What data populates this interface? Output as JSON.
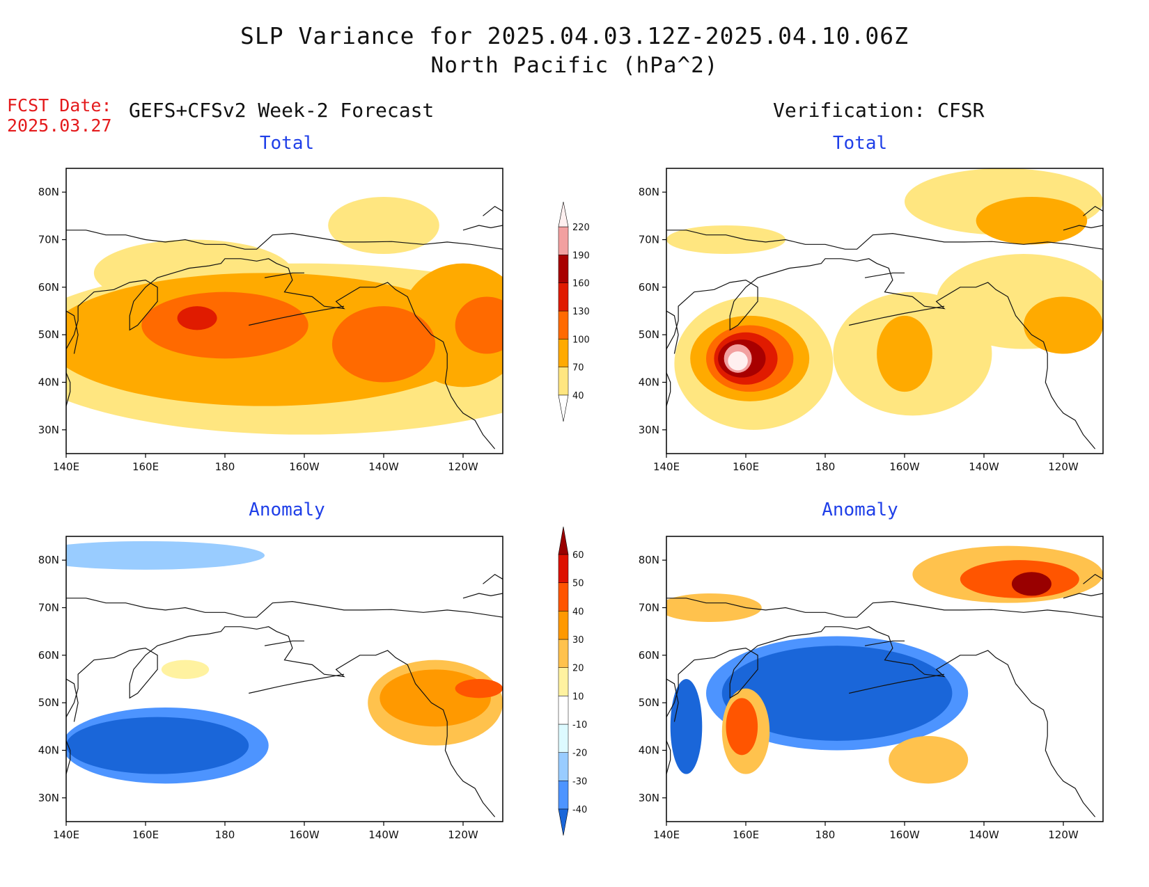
{
  "title": {
    "line1": "SLP Variance for 2025.04.03.12Z-2025.04.10.06Z",
    "line2": "North Pacific (hPa^2)"
  },
  "forecast": {
    "date_label": "FCST Date:",
    "date_value": "2025.03.27",
    "heading": "GEFS+CFSv2 Week-2 Forecast"
  },
  "verification": {
    "heading": "Verification: CFSR"
  },
  "panels": {
    "fc_total": {
      "title": "Total"
    },
    "vf_total": {
      "title": "Total"
    },
    "fc_anom": {
      "title": "Anomaly"
    },
    "vf_anom": {
      "title": "Anomaly"
    }
  },
  "axes": {
    "lat_labels": [
      "80N",
      "70N",
      "60N",
      "50N",
      "40N",
      "30N"
    ],
    "lon_labels": [
      "140E",
      "160E",
      "180",
      "160W",
      "140W",
      "120W"
    ]
  },
  "colorbars": {
    "total": {
      "levels": [
        "40",
        "70",
        "100",
        "130",
        "160",
        "190",
        "220"
      ],
      "colors": [
        "#ffe680",
        "#ffaa00",
        "#ff6a00",
        "#e01b00",
        "#a80000",
        "#f2a0a0",
        "#fff0f0"
      ]
    },
    "anomaly": {
      "levels": [
        "-40",
        "-30",
        "-20",
        "-10",
        "10",
        "20",
        "30",
        "40",
        "50",
        "60"
      ],
      "colors": [
        "#1a66d9",
        "#4d94ff",
        "#99ccff",
        "#ddfaff",
        "#ffffff",
        "#fff2a0",
        "#ffc24d",
        "#ff9900",
        "#ff5500",
        "#dd1100",
        "#990000"
      ]
    }
  },
  "chart_data": [
    {
      "type": "heatmap",
      "title": "Total",
      "subtitle": "GEFS+CFSv2 Week-2 Forecast",
      "units": "hPa^2",
      "xlim": [
        140,
        250
      ],
      "ylim": [
        25,
        85
      ],
      "fields": [
        {
          "lon": 200,
          "lat": 47,
          "rx": 75,
          "ry": 18,
          "value": 40
        },
        {
          "lon": 172,
          "lat": 63,
          "rx": 25,
          "ry": 7,
          "value": 40
        },
        {
          "lon": 220,
          "lat": 73,
          "rx": 14,
          "ry": 6,
          "value": 40
        },
        {
          "lon": 190,
          "lat": 49,
          "rx": 55,
          "ry": 14,
          "value": 70
        },
        {
          "lon": 240,
          "lat": 52,
          "rx": 16,
          "ry": 13,
          "value": 70
        },
        {
          "lon": 180,
          "lat": 52,
          "rx": 21,
          "ry": 7,
          "value": 100
        },
        {
          "lon": 220,
          "lat": 48,
          "rx": 13,
          "ry": 8,
          "value": 100
        },
        {
          "lon": 246,
          "lat": 52,
          "rx": 8,
          "ry": 6,
          "value": 100
        },
        {
          "lon": 173,
          "lat": 53.5,
          "rx": 5,
          "ry": 2.5,
          "value": 130
        }
      ]
    },
    {
      "type": "heatmap",
      "title": "Total",
      "subtitle": "Verification: CFSR",
      "units": "hPa^2",
      "xlim": [
        140,
        250
      ],
      "ylim": [
        25,
        85
      ],
      "fields": [
        {
          "lon": 162,
          "lat": 44,
          "rx": 20,
          "ry": 14,
          "value": 40
        },
        {
          "lon": 202,
          "lat": 46,
          "rx": 20,
          "ry": 13,
          "value": 40
        },
        {
          "lon": 230,
          "lat": 57,
          "rx": 22,
          "ry": 10,
          "value": 40
        },
        {
          "lon": 225,
          "lat": 78,
          "rx": 25,
          "ry": 7,
          "value": 40
        },
        {
          "lon": 155,
          "lat": 70,
          "rx": 15,
          "ry": 3,
          "value": 40
        },
        {
          "lon": 161,
          "lat": 45,
          "rx": 15,
          "ry": 9,
          "value": 70
        },
        {
          "lon": 200,
          "lat": 46,
          "rx": 7,
          "ry": 8,
          "value": 70
        },
        {
          "lon": 240,
          "lat": 52,
          "rx": 10,
          "ry": 6,
          "value": 70
        },
        {
          "lon": 232,
          "lat": 74,
          "rx": 14,
          "ry": 5,
          "value": 70
        },
        {
          "lon": 161,
          "lat": 45,
          "rx": 11,
          "ry": 7,
          "value": 100
        },
        {
          "lon": 160,
          "lat": 45,
          "rx": 8,
          "ry": 5.5,
          "value": 130
        },
        {
          "lon": 159,
          "lat": 45,
          "rx": 6,
          "ry": 4,
          "value": 160
        },
        {
          "lon": 158,
          "lat": 45,
          "rx": 3.5,
          "ry": 3,
          "value": 190
        },
        {
          "lon": 158,
          "lat": 44.5,
          "rx": 2.5,
          "ry": 2,
          "value": 220
        }
      ]
    },
    {
      "type": "heatmap",
      "title": "Anomaly",
      "subtitle": "GEFS+CFSv2 Week-2 Forecast",
      "units": "hPa^2",
      "xlim": [
        140,
        250
      ],
      "ylim": [
        25,
        85
      ],
      "fields": [
        {
          "lon": 165,
          "lat": 41,
          "rx": 26,
          "ry": 8,
          "value": -20
        },
        {
          "lon": 163,
          "lat": 41,
          "rx": 23,
          "ry": 6,
          "value": -30
        },
        {
          "lon": 160,
          "lat": 81,
          "rx": 30,
          "ry": 3,
          "value": -10
        },
        {
          "lon": 233,
          "lat": 50,
          "rx": 17,
          "ry": 9,
          "value": 20
        },
        {
          "lon": 233,
          "lat": 51,
          "rx": 14,
          "ry": 6,
          "value": 30
        },
        {
          "lon": 244,
          "lat": 53,
          "rx": 6,
          "ry": 2,
          "value": 40
        },
        {
          "lon": 170,
          "lat": 57,
          "rx": 6,
          "ry": 2,
          "value": 10
        }
      ]
    },
    {
      "type": "heatmap",
      "title": "Anomaly",
      "subtitle": "Verification: CFSR",
      "units": "hPa^2",
      "xlim": [
        140,
        250
      ],
      "ylim": [
        25,
        85
      ],
      "fields": [
        {
          "lon": 183,
          "lat": 52,
          "rx": 33,
          "ry": 12,
          "value": -20
        },
        {
          "lon": 183,
          "lat": 52,
          "rx": 29,
          "ry": 10,
          "value": -30
        },
        {
          "lon": 145,
          "lat": 45,
          "rx": 4,
          "ry": 10,
          "value": -30
        },
        {
          "lon": 160,
          "lat": 44,
          "rx": 6,
          "ry": 9,
          "value": 20
        },
        {
          "lon": 159,
          "lat": 45,
          "rx": 4,
          "ry": 6,
          "value": 40
        },
        {
          "lon": 206,
          "lat": 38,
          "rx": 10,
          "ry": 5,
          "value": 20
        },
        {
          "lon": 226,
          "lat": 77,
          "rx": 24,
          "ry": 6,
          "value": 20
        },
        {
          "lon": 229,
          "lat": 76,
          "rx": 15,
          "ry": 4,
          "value": 40
        },
        {
          "lon": 232,
          "lat": 75,
          "rx": 5,
          "ry": 2.5,
          "value": 60
        },
        {
          "lon": 151,
          "lat": 70,
          "rx": 13,
          "ry": 3,
          "value": 20
        }
      ]
    }
  ]
}
